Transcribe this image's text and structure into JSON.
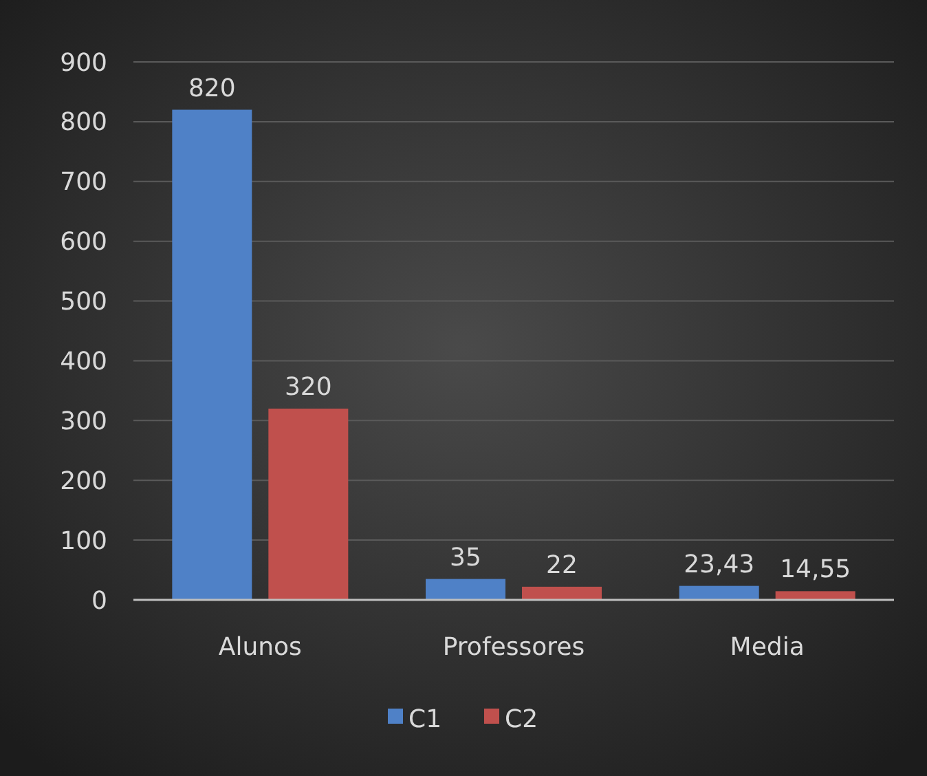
{
  "chart_data": {
    "type": "bar",
    "categories": [
      "Alunos",
      "Professores",
      "Media"
    ],
    "series": [
      {
        "name": "C1",
        "color": "#4f81c7",
        "values": [
          820,
          35,
          23.43
        ],
        "value_labels": [
          "820",
          "35",
          "23,43"
        ]
      },
      {
        "name": "C2",
        "color": "#c0504d",
        "values": [
          320,
          22,
          14.55
        ],
        "value_labels": [
          "320",
          "22",
          "14,55"
        ]
      }
    ],
    "ylim": [
      0,
      900
    ],
    "yticks": [
      0,
      100,
      200,
      300,
      400,
      500,
      600,
      700,
      800,
      900
    ],
    "grid": "y",
    "legend": "bottom"
  }
}
